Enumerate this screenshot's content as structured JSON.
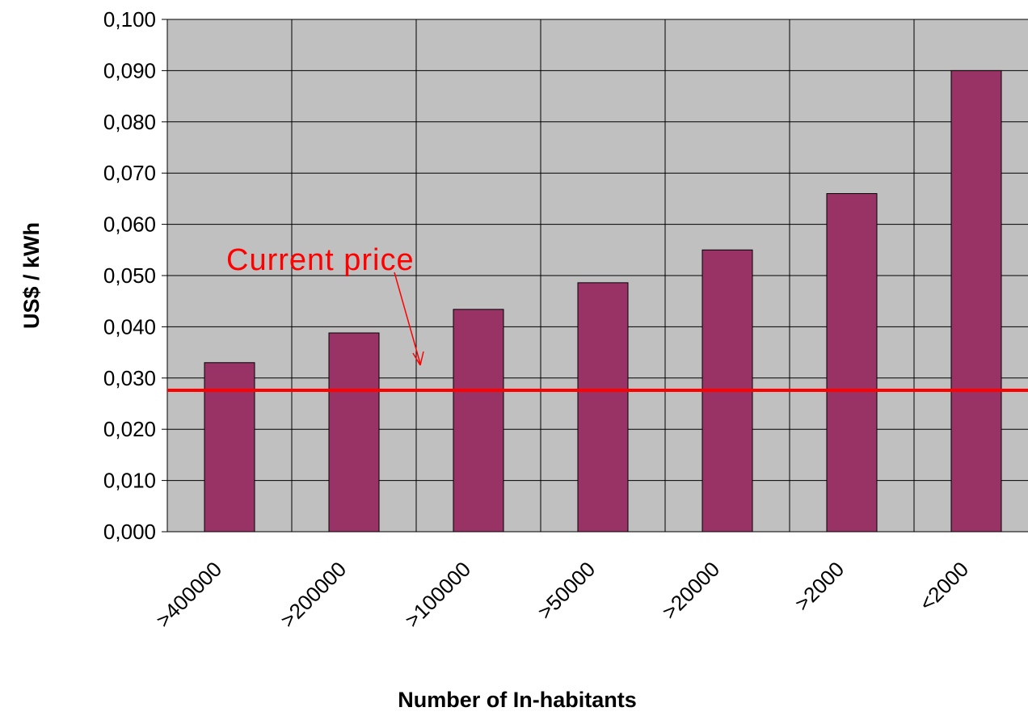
{
  "chart_data": {
    "type": "bar",
    "x_label": "Number of In-habitants",
    "y_label": "US$ / kWh",
    "categories": [
      ">400000",
      ">200000",
      ">100000",
      ">50000",
      ">20000",
      ">2000",
      "<2000"
    ],
    "values": [
      0.033,
      0.0388,
      0.0434,
      0.0486,
      0.055,
      0.066,
      0.09
    ],
    "color": "#993366",
    "ylim": [
      0,
      0.1
    ],
    "yticks": [
      {
        "value": 0,
        "label": "0,000"
      },
      {
        "value": 0.01,
        "label": "0,010"
      },
      {
        "value": 0.02,
        "label": "0,020"
      },
      {
        "value": 0.03,
        "label": "0,030"
      },
      {
        "value": 0.04,
        "label": "0,040"
      },
      {
        "value": 0.05,
        "label": "0,050"
      },
      {
        "value": 0.06,
        "label": "0,060"
      },
      {
        "value": 0.07,
        "label": "0,070"
      },
      {
        "value": 0.08,
        "label": "0,080"
      },
      {
        "value": 0.09,
        "label": "0,090"
      },
      {
        "value": 0.1,
        "label": "0,100"
      }
    ],
    "grid": true,
    "reference_line": {
      "label": "Current price",
      "value": 0.0276,
      "color": "#ff0000"
    }
  }
}
